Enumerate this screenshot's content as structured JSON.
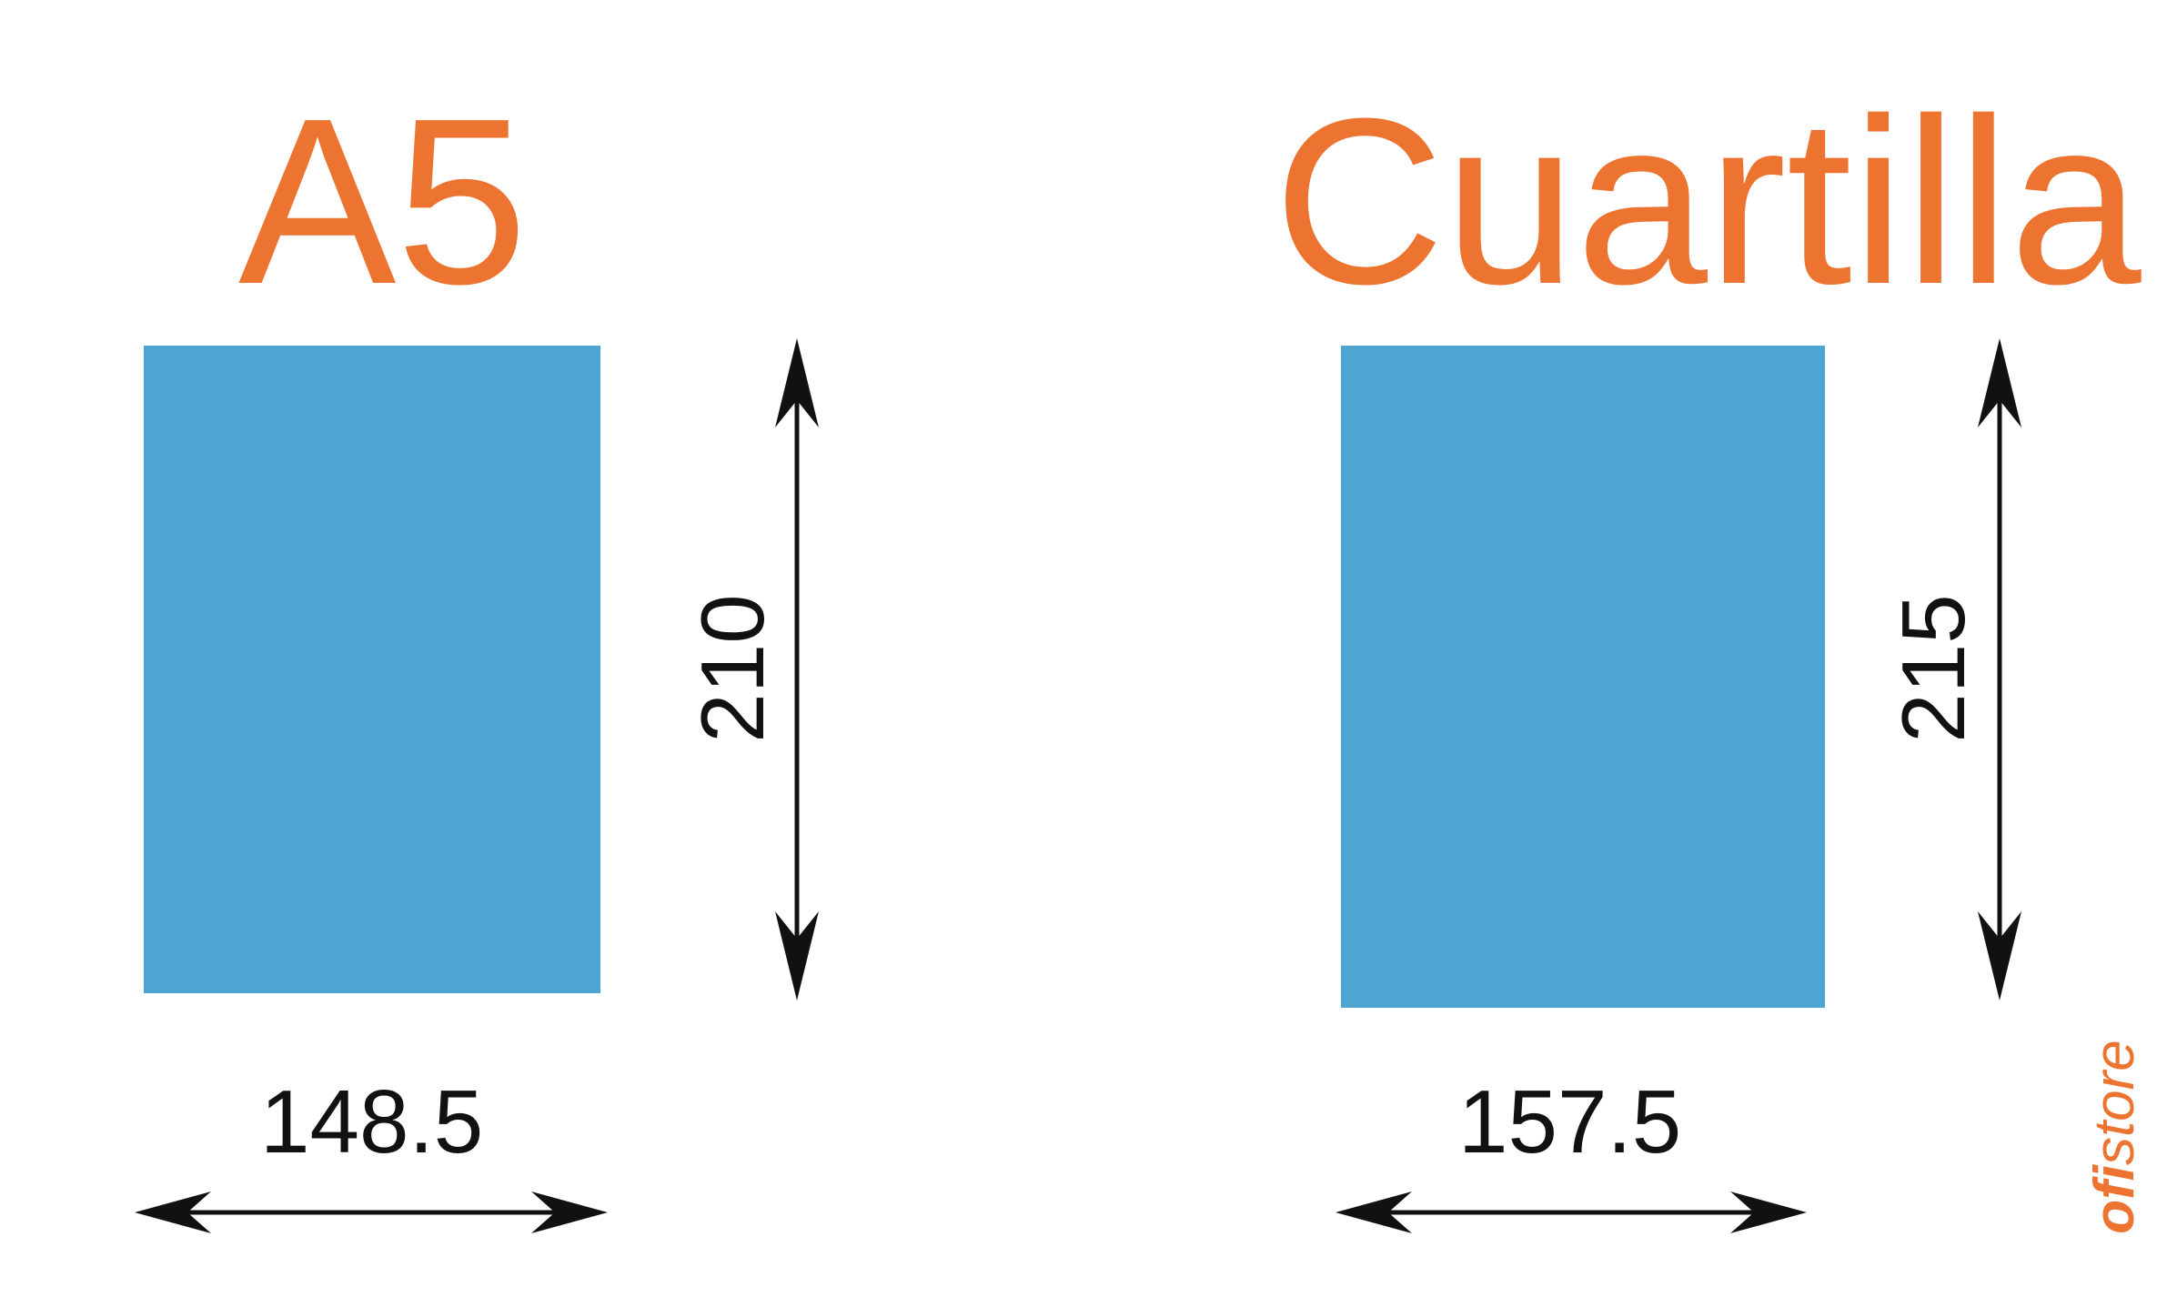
{
  "colors": {
    "title": "#ED7330",
    "sheet": "#4DA6D1",
    "arrow": "#111111",
    "brand": "#ED7330"
  },
  "formats": [
    {
      "title": "A5",
      "width_label": "148.5",
      "height_label": "210"
    },
    {
      "title": "Cuartilla",
      "width_label": "157.5",
      "height_label": "215"
    }
  ],
  "watermark": {
    "part1": "ofi",
    "part2": "store"
  }
}
